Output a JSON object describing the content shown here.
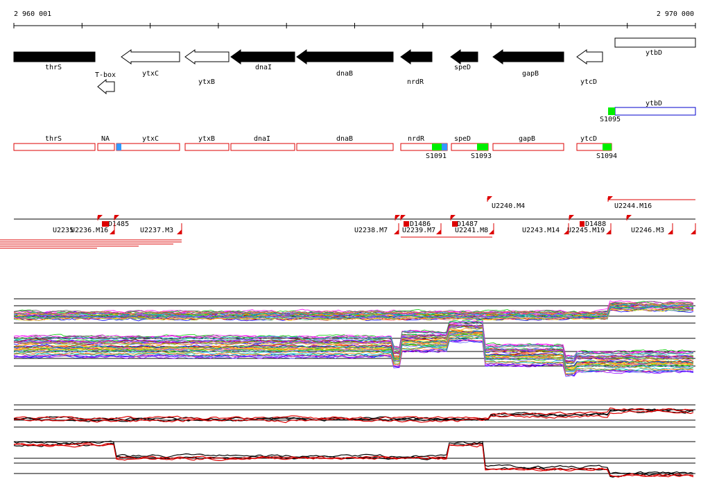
{
  "ruler": {
    "start": "2 960 001",
    "end": "2 970 000"
  },
  "genes": [
    {
      "label": "thrS"
    },
    {
      "label": "T-box"
    },
    {
      "label": "ytxC"
    },
    {
      "label": "ytxB"
    },
    {
      "label": "dnaI"
    },
    {
      "label": "dnaB"
    },
    {
      "label": "nrdR"
    },
    {
      "label": "speD"
    },
    {
      "label": "gapB"
    },
    {
      "label": "ytcD"
    },
    {
      "label": "ytbD"
    }
  ],
  "regulated": {
    "gene": "ytbD",
    "site": "S1095"
  },
  "operons": [
    {
      "label": "thrS"
    },
    {
      "label": "NA"
    },
    {
      "label": "ytxC"
    },
    {
      "label": "ytxB"
    },
    {
      "label": "dnaI"
    },
    {
      "label": "dnaB"
    },
    {
      "label": "nrdR",
      "site": "S1091"
    },
    {
      "label": "speD",
      "site": "S1093"
    },
    {
      "label": "gapB"
    },
    {
      "label": "ytcD",
      "site": "S1094"
    }
  ],
  "units": [
    {
      "label": "U2235"
    },
    {
      "label": "U2236.M16"
    },
    {
      "label": "D1485"
    },
    {
      "label": "U2237.M3"
    },
    {
      "label": "U2238.M7"
    },
    {
      "label": "D1486"
    },
    {
      "label": "U2239.M7"
    },
    {
      "label": "U2241.M8"
    },
    {
      "label": "D1487"
    },
    {
      "label": "U2240.M4"
    },
    {
      "label": "U2243.M14"
    },
    {
      "label": "U2245.M19"
    },
    {
      "label": "D1488"
    },
    {
      "label": "U2244.M16"
    },
    {
      "label": "U2246.M3"
    }
  ]
}
